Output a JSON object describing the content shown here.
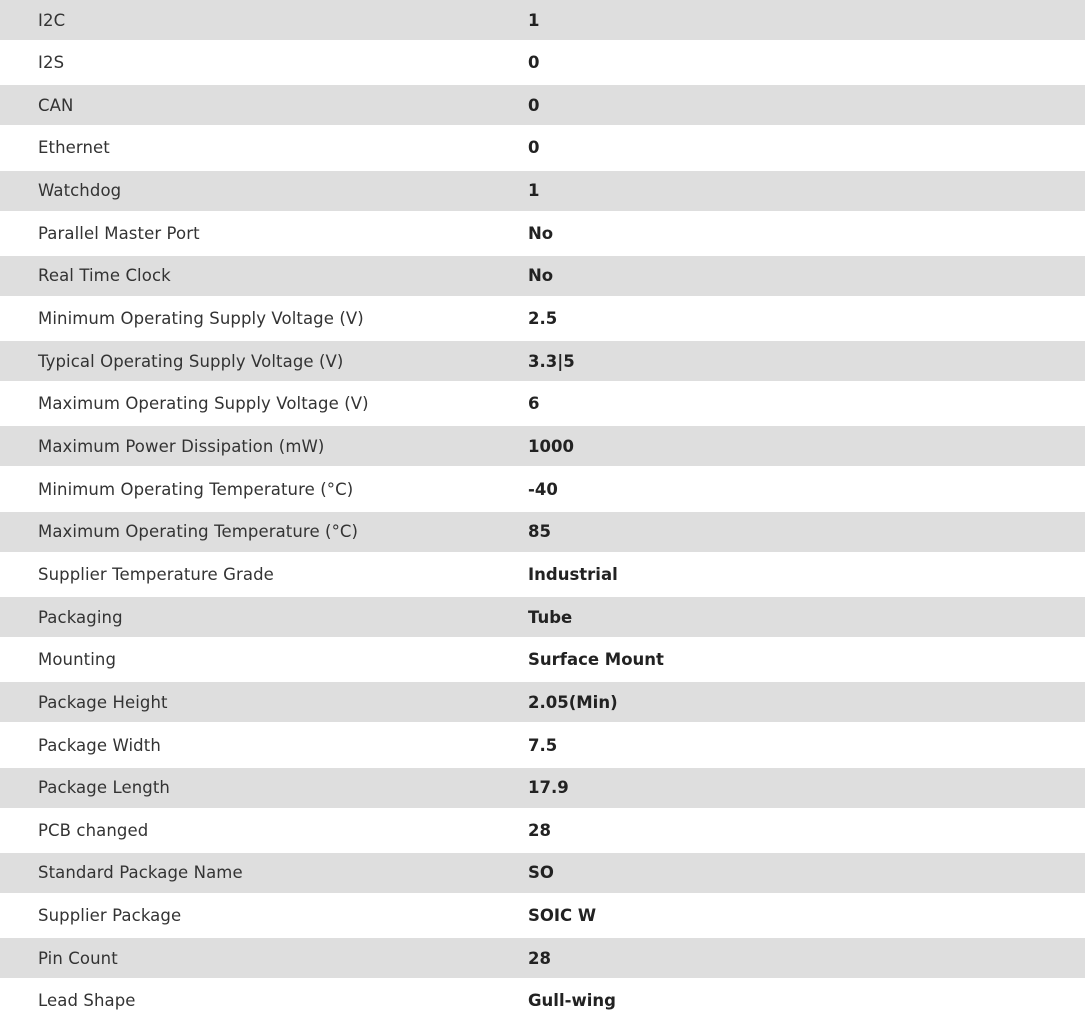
{
  "specs": [
    {
      "label": "I2C",
      "value": "1"
    },
    {
      "label": "I2S",
      "value": "0"
    },
    {
      "label": "CAN",
      "value": "0"
    },
    {
      "label": "Ethernet",
      "value": "0"
    },
    {
      "label": "Watchdog",
      "value": "1"
    },
    {
      "label": "Parallel Master Port",
      "value": "No"
    },
    {
      "label": "Real Time Clock",
      "value": "No"
    },
    {
      "label": "Minimum Operating Supply Voltage (V)",
      "value": "2.5"
    },
    {
      "label": "Typical Operating Supply Voltage (V)",
      "value": "3.3|5"
    },
    {
      "label": "Maximum Operating Supply Voltage (V)",
      "value": "6"
    },
    {
      "label": "Maximum Power Dissipation (mW)",
      "value": "1000"
    },
    {
      "label": "Minimum Operating Temperature (°C)",
      "value": "-40"
    },
    {
      "label": "Maximum Operating Temperature (°C)",
      "value": "85"
    },
    {
      "label": "Supplier Temperature Grade",
      "value": "Industrial"
    },
    {
      "label": "Packaging",
      "value": "Tube"
    },
    {
      "label": "Mounting",
      "value": "Surface Mount"
    },
    {
      "label": "Package Height",
      "value": "2.05(Min)"
    },
    {
      "label": "Package Width",
      "value": "7.5"
    },
    {
      "label": "Package Length",
      "value": "17.9"
    },
    {
      "label": "PCB changed",
      "value": "28"
    },
    {
      "label": "Standard Package Name",
      "value": "SO"
    },
    {
      "label": "Supplier Package",
      "value": "SOIC W"
    },
    {
      "label": "Pin Count",
      "value": "28"
    },
    {
      "label": "Lead Shape",
      "value": "Gull-wing"
    }
  ]
}
